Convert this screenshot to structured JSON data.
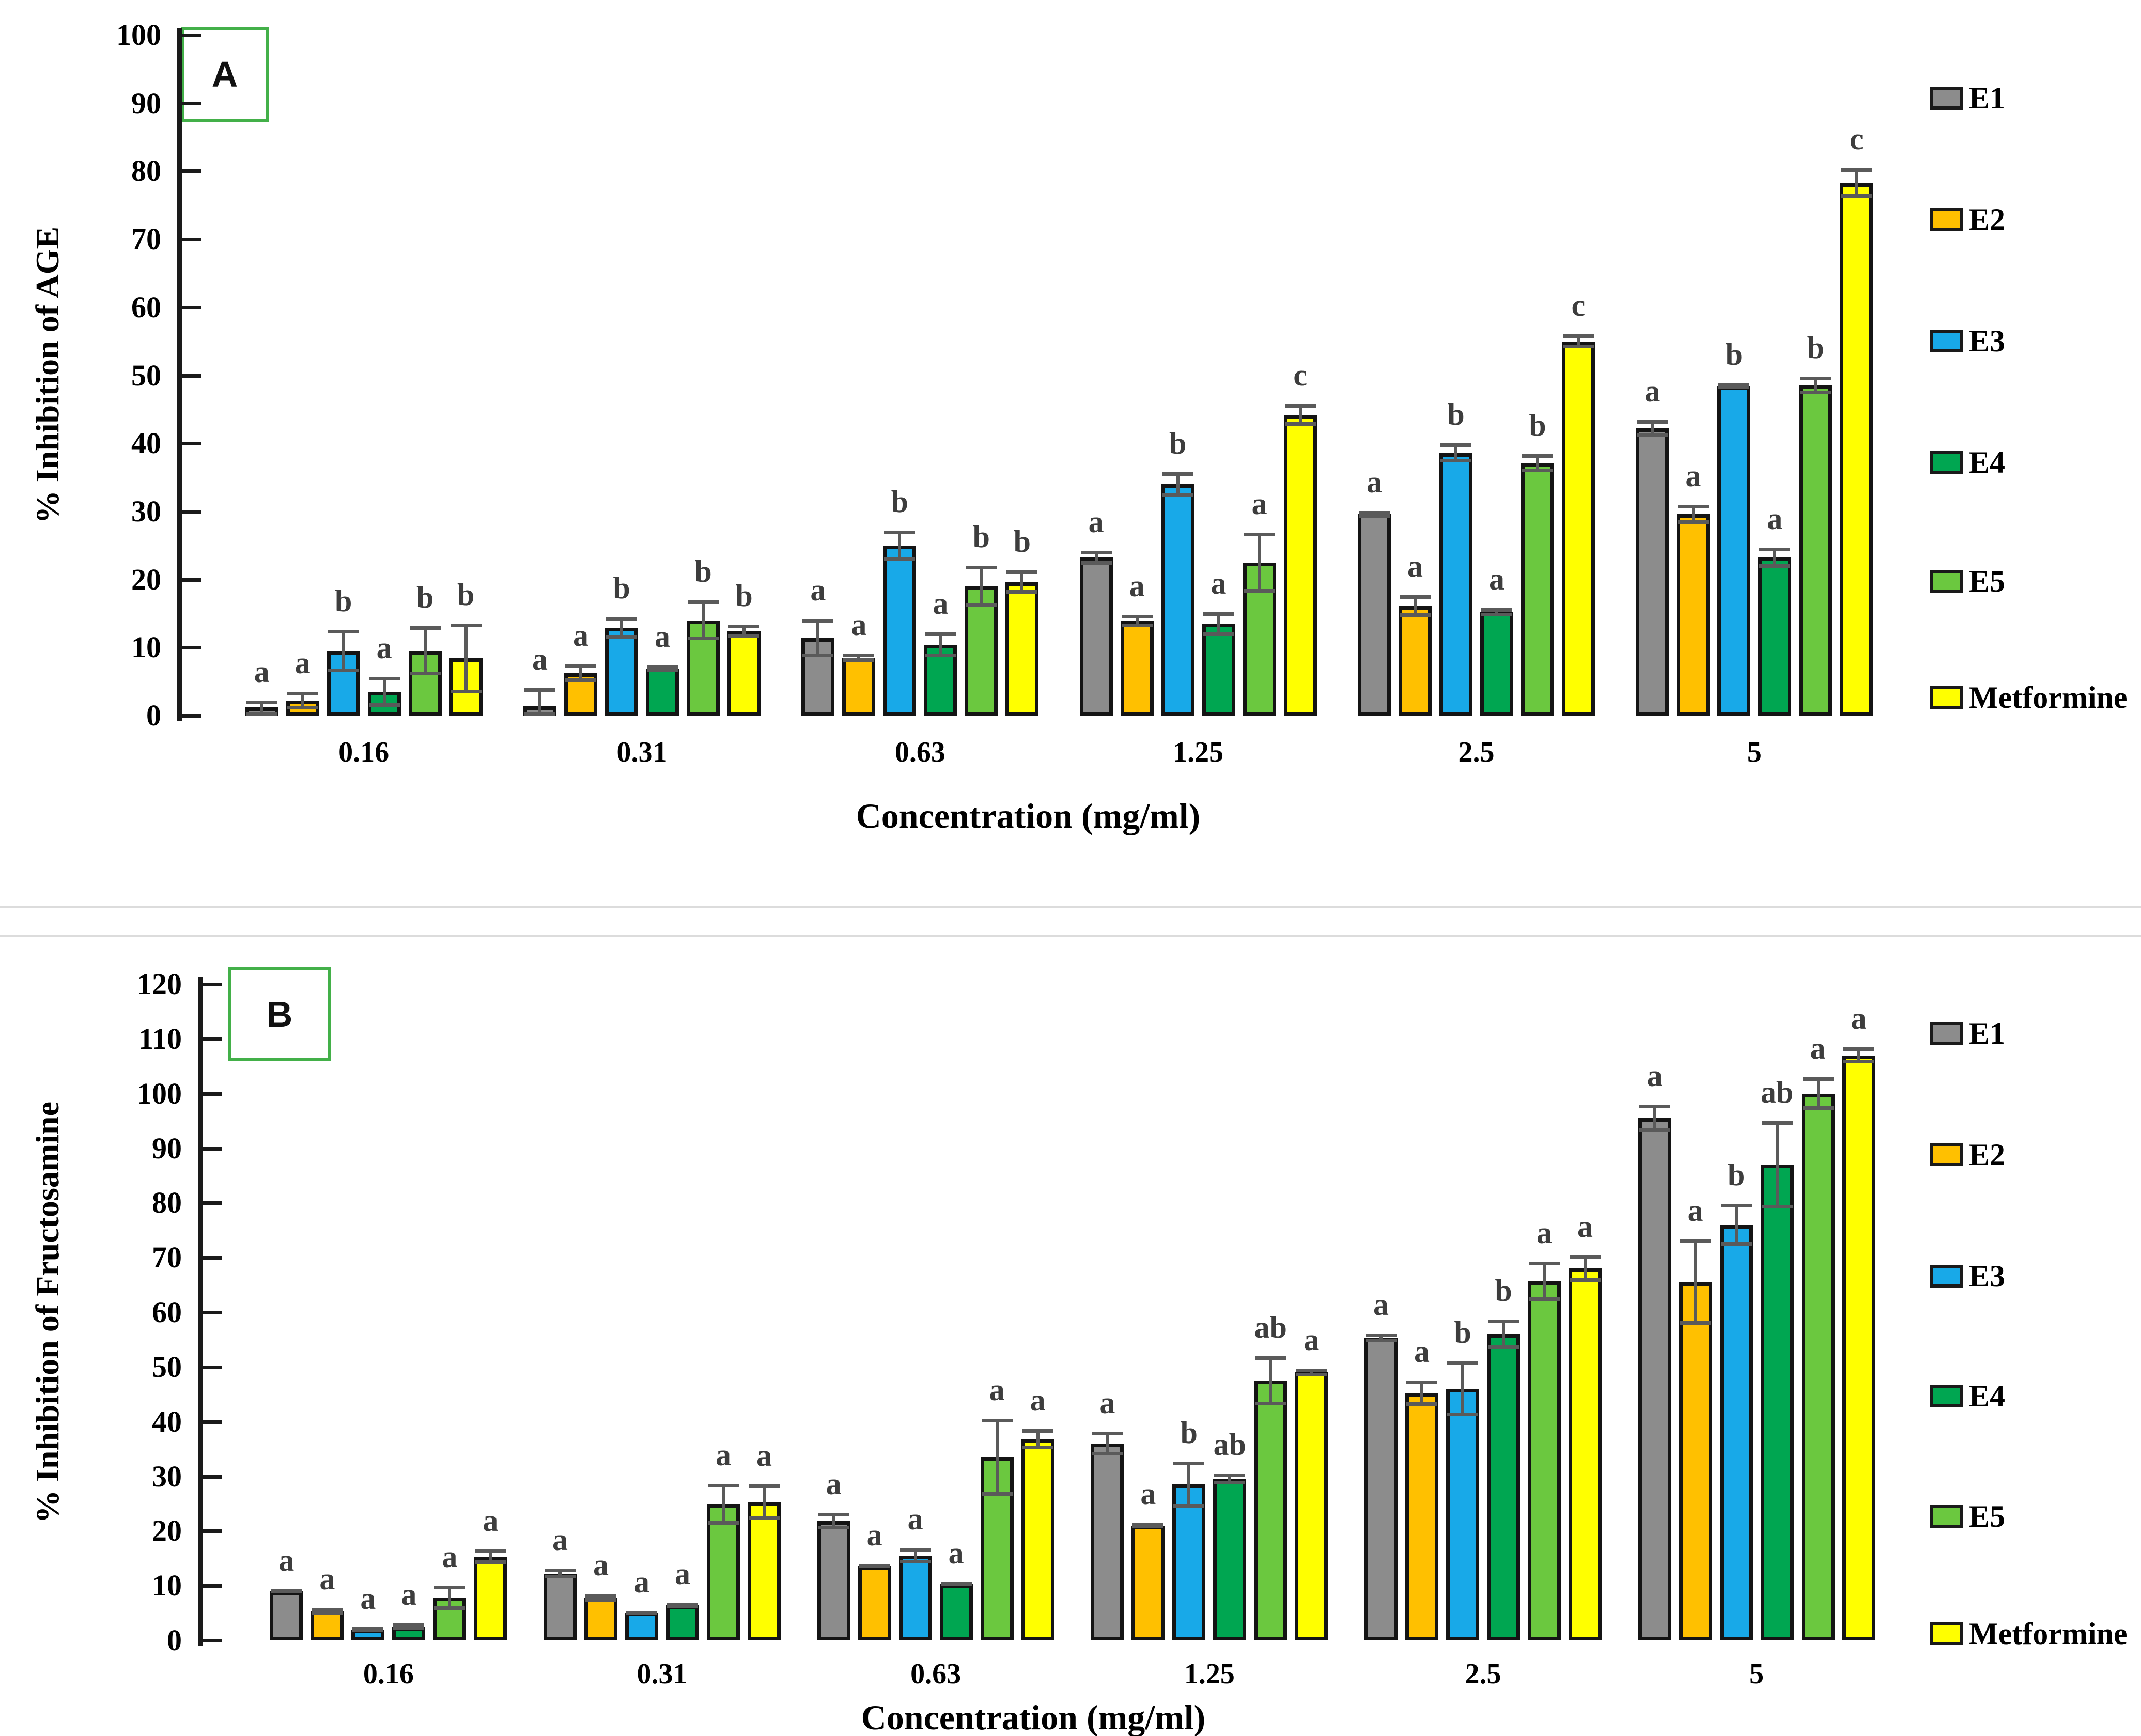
{
  "theme": {
    "background": "#ffffff",
    "axis_color": "#1a1a1a",
    "error_bar_color": "#5a5a5a",
    "sig_letter_color": "#3d3d3d",
    "bar_outline_color": "#141414",
    "panel_box_border_color": "#43b049",
    "divider_color": "#dcdcdc"
  },
  "chart_data": [
    {
      "type": "bar",
      "panel_label": "A",
      "ylabel": "% Inhibition of AGE",
      "xlabel": "Concentration (mg/ml)",
      "ylim": [
        0,
        100
      ],
      "ytick_step": 10,
      "ytick_labels": [
        "0",
        "10",
        "20",
        "30",
        "40",
        "50",
        "60",
        "70",
        "80",
        "90",
        "100"
      ],
      "grid": false,
      "legend_position": "right",
      "categories": [
        "0.16",
        "0.31",
        "0.63",
        "1.25",
        "2.5",
        "5"
      ],
      "series": [
        {
          "name": "E1",
          "color": "#8C8C8C",
          "values": [
            1.0,
            1.4,
            11.4,
            23.2,
            29.6,
            42.2
          ],
          "errors": [
            1.2,
            2.6,
            2.8,
            1.0,
            0.5,
            1.2
          ],
          "letters": [
            "a",
            "a",
            "a",
            "a",
            "a",
            "a"
          ]
        },
        {
          "name": "E2",
          "color": "#FFC000",
          "values": [
            2.2,
            6.2,
            8.5,
            13.9,
            16.1,
            29.6
          ],
          "errors": [
            1.3,
            1.3,
            0.6,
            0.9,
            1.6,
            1.4
          ],
          "letters": [
            "a",
            "a",
            "a",
            "a",
            "a",
            "a"
          ]
        },
        {
          "name": "E3",
          "color": "#18A9E8",
          "values": [
            9.5,
            12.9,
            25.0,
            34.0,
            38.6,
            48.4
          ],
          "errors": [
            3.1,
            1.6,
            2.2,
            1.8,
            1.4,
            0.4
          ],
          "letters": [
            "b",
            "b",
            "b",
            "b",
            "b",
            "b"
          ]
        },
        {
          "name": "E4",
          "color": "#00A651",
          "values": [
            3.5,
            6.9,
            10.4,
            13.5,
            15.2,
            23.2
          ],
          "errors": [
            2.2,
            0.5,
            1.8,
            1.7,
            0.6,
            1.5
          ],
          "letters": [
            "a",
            "a",
            "a",
            "a",
            "a",
            "a"
          ]
        },
        {
          "name": "E5",
          "color": "#6BC83F",
          "values": [
            9.5,
            14.0,
            19.0,
            22.5,
            37.1,
            48.5
          ],
          "errors": [
            3.6,
            2.9,
            3.0,
            4.4,
            1.3,
            1.3
          ],
          "letters": [
            "b",
            "b",
            "b",
            "a",
            "b",
            "b"
          ]
        },
        {
          "name": "Metformine",
          "color": "#FFFF00",
          "values": [
            8.4,
            12.4,
            19.6,
            44.2,
            55.0,
            78.3
          ],
          "errors": [
            5.1,
            1.0,
            1.7,
            1.6,
            1.0,
            2.2
          ],
          "letters": [
            "b",
            "b",
            "b",
            "c",
            "c",
            "c"
          ]
        }
      ]
    },
    {
      "type": "bar",
      "panel_label": "B",
      "ylabel": "% Inhibition of Fructosamine",
      "xlabel": "Concentration (mg/ml)",
      "ylim": [
        0,
        120
      ],
      "ytick_step": 10,
      "ytick_labels": [
        "0",
        "10",
        "20",
        "30",
        "40",
        "50",
        "60",
        "70",
        "80",
        "90",
        "100",
        "110",
        "120"
      ],
      "grid": false,
      "legend_position": "right",
      "categories": [
        "0.16",
        "0.31",
        "0.63",
        "1.25",
        "2.5",
        "5"
      ],
      "series": [
        {
          "name": "E1",
          "color": "#8C8C8C",
          "values": [
            9.0,
            12.2,
            21.8,
            36.0,
            55.3,
            95.5
          ],
          "errors": [
            0.4,
            0.9,
            1.5,
            2.2,
            0.8,
            2.5
          ],
          "letters": [
            "a",
            "a",
            "a",
            "a",
            "a",
            "a"
          ]
        },
        {
          "name": "E2",
          "color": "#FFC000",
          "values": [
            5.3,
            7.8,
            13.6,
            21.0,
            45.2,
            65.5
          ],
          "errors": [
            0.7,
            0.7,
            0.4,
            0.5,
            2.3,
            7.8
          ],
          "letters": [
            "a",
            "a",
            "a",
            "a",
            "a",
            "a"
          ]
        },
        {
          "name": "E3",
          "color": "#18A9E8",
          "values": [
            2.0,
            5.1,
            15.5,
            28.5,
            46.0,
            76.0
          ],
          "errors": [
            0.4,
            0.3,
            1.4,
            4.2,
            5.0,
            3.8
          ],
          "letters": [
            "a",
            "a",
            "a",
            "b",
            "b",
            "b"
          ]
        },
        {
          "name": "E4",
          "color": "#00A651",
          "values": [
            2.5,
            6.4,
            10.3,
            29.5,
            56.0,
            87.0
          ],
          "errors": [
            0.6,
            0.5,
            0.4,
            1.0,
            2.7,
            8.0
          ],
          "letters": [
            "a",
            "a",
            "a",
            "ab",
            "b",
            "ab"
          ]
        },
        {
          "name": "E5",
          "color": "#6BC83F",
          "values": [
            7.8,
            24.9,
            33.5,
            47.5,
            65.7,
            100.0
          ],
          "errors": [
            2.2,
            3.7,
            7.0,
            4.5,
            3.6,
            3.0
          ],
          "letters": [
            "a",
            "a",
            "a",
            "ab",
            "a",
            "a"
          ]
        },
        {
          "name": "Metformine",
          "color": "#FFFF00",
          "values": [
            15.3,
            25.3,
            36.8,
            49.0,
            68.0,
            107.0
          ],
          "errors": [
            1.3,
            3.2,
            1.8,
            0.7,
            2.4,
            1.5
          ],
          "letters": [
            "a",
            "a",
            "a",
            "a",
            "a",
            "a"
          ]
        }
      ]
    }
  ]
}
